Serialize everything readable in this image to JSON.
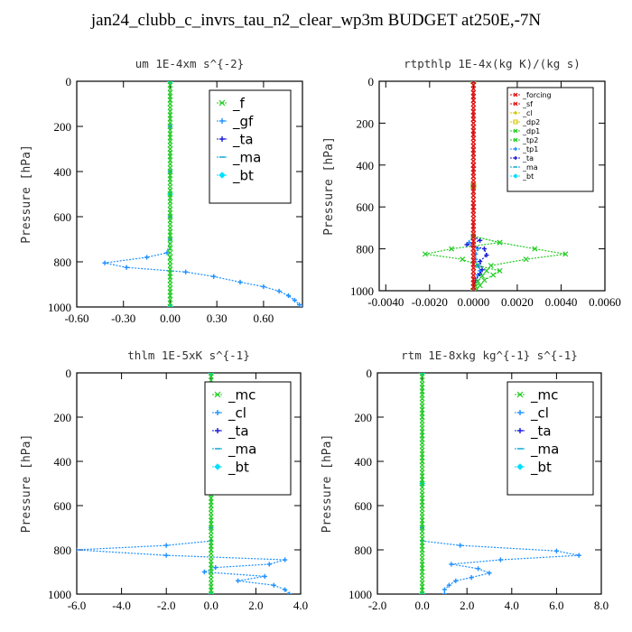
{
  "title": "jan24_clubb_c_invrs_tau_n2_clear_wp3m  BUDGET at250E,-7N",
  "colors": {
    "f": "#22cc22",
    "gf": "#1e90ff",
    "ta": "#1a1adc",
    "ma": "#00a0d0",
    "bt": "#00e0ff",
    "mc": "#22cc22",
    "cl": "#1e90ff",
    "forcing": "#e01010",
    "sf": "#e01010",
    "dp2": "#d4c400",
    "dp1": "#d4c400",
    "tp2": "#22cc22",
    "tp1": "#1e90ff"
  },
  "chart_data": [
    {
      "type": "line",
      "title": "um   1E-4xm  s^{-2}",
      "ylabel": "Pressure  [hPa]",
      "xlim": [
        -0.6,
        0.85
      ],
      "ylim": [
        1000,
        0
      ],
      "xticks": [
        -0.6,
        -0.3,
        0.0,
        0.3,
        0.6
      ],
      "xtick_labels": [
        "-0.60",
        "-0.30",
        "0.00",
        "0.30",
        "0.60"
      ],
      "yticks": [
        0,
        200,
        400,
        600,
        800,
        1000
      ],
      "legend_loc": "upper-right",
      "series": [
        {
          "name": "_f",
          "color": "#22cc22",
          "marker": "x",
          "y": [
            0,
            100,
            200,
            300,
            400,
            500,
            600,
            700,
            760,
            800,
            850,
            900,
            950,
            1000
          ],
          "x": [
            0,
            0,
            0,
            0,
            0,
            0,
            0,
            0,
            0,
            0,
            0,
            0,
            0,
            0
          ]
        },
        {
          "name": "_gf",
          "color": "#1e90ff",
          "marker": "+",
          "y": [
            0,
            200,
            400,
            600,
            700,
            760,
            780,
            805,
            825,
            845,
            865,
            890,
            910,
            930,
            950,
            970,
            990,
            1000
          ],
          "x": [
            0,
            0,
            0,
            0,
            0,
            -0.02,
            -0.15,
            -0.42,
            -0.28,
            0.1,
            0.28,
            0.45,
            0.6,
            0.7,
            0.76,
            0.8,
            0.83,
            0.85
          ]
        },
        {
          "name": "_ta",
          "color": "#1a1adc",
          "marker": "+",
          "y": [
            0,
            500,
            1000
          ],
          "x": [
            0,
            0,
            0
          ]
        },
        {
          "name": "_ma",
          "color": "#00a0d0",
          "marker": "-",
          "y": [
            0,
            500,
            1000
          ],
          "x": [
            0,
            0,
            0
          ]
        },
        {
          "name": "_bt",
          "color": "#00e0ff",
          "marker": "diamond",
          "y": [
            0,
            500,
            1000
          ],
          "x": [
            0,
            0,
            0
          ]
        }
      ]
    },
    {
      "type": "line",
      "title": "rtpthlp   1E-4x(kg K)/(kg s)",
      "ylabel": "Pressure  [hPa]",
      "xlim": [
        -0.0043,
        0.006
      ],
      "ylim": [
        1000,
        0
      ],
      "xticks": [
        -0.004,
        -0.002,
        0.0,
        0.002,
        0.004,
        0.006
      ],
      "xtick_labels": [
        "-0.0040",
        "-0.0020",
        "0.0000",
        "0.0020",
        "0.0040",
        "0.0060"
      ],
      "yticks": [
        0,
        200,
        400,
        600,
        800,
        1000
      ],
      "legend_loc": "upper-right",
      "series": [
        {
          "name": "_forcing",
          "color": "#e01010",
          "marker": "x",
          "y": [
            0,
            200,
            400,
            600,
            800,
            1000
          ],
          "x": [
            0,
            0,
            0,
            0,
            0,
            0
          ]
        },
        {
          "name": "_sf",
          "color": "#e01010",
          "marker": "x",
          "y": [
            0,
            200,
            400,
            600,
            800,
            1000
          ],
          "x": [
            0,
            0,
            0,
            0,
            0,
            0
          ]
        },
        {
          "name": "_cl",
          "color": "#d4c400",
          "marker": "+",
          "y": [
            0,
            500,
            1000
          ],
          "x": [
            0,
            0,
            0
          ]
        },
        {
          "name": "_dp2",
          "color": "#d4c400",
          "marker": "box",
          "y": [
            0,
            500,
            1000
          ],
          "x": [
            0,
            0,
            0
          ]
        },
        {
          "name": "_dp1",
          "color": "#22cc22",
          "marker": "x",
          "y": [
            0,
            500,
            1000
          ],
          "x": [
            0,
            0,
            0
          ]
        },
        {
          "name": "_tp2",
          "color": "#22cc22",
          "marker": "x",
          "y": [
            0,
            740,
            770,
            800,
            825,
            850,
            880,
            905,
            925,
            950,
            975,
            1000
          ],
          "x": [
            0,
            0,
            0.0012,
            -0.001,
            -0.0022,
            -0.0005,
            0.0002,
            0.0012,
            0.0009,
            0.0005,
            0.0003,
            0.0001
          ]
        },
        {
          "name": "_tp1",
          "color": "#1e90ff",
          "marker": "+",
          "y": [
            0,
            740,
            770,
            800,
            825,
            850,
            880,
            905,
            925,
            950,
            1000
          ],
          "x": [
            0,
            0,
            -0.0002,
            0.0002,
            0.0001,
            0.0001,
            0.0002,
            0.0003,
            0.0002,
            0.0001,
            0
          ]
        },
        {
          "name": "_ta",
          "color": "#1a1adc",
          "marker": "+",
          "y": [
            0,
            740,
            760,
            780,
            800,
            830,
            860,
            900,
            920,
            950,
            1000
          ],
          "x": [
            0,
            0,
            0.0003,
            -0.0003,
            0.0005,
            0.0006,
            0.0003,
            0.0004,
            0.0003,
            0.0001,
            0
          ]
        },
        {
          "name": "_ma",
          "color": "#00a0d0",
          "marker": "-",
          "y": [
            0,
            500,
            1000
          ],
          "x": [
            0,
            0,
            0
          ]
        },
        {
          "name": "_bt",
          "color": "#00e0ff",
          "marker": "diamond",
          "y": [
            0,
            500,
            1000
          ],
          "x": [
            0,
            0,
            0
          ]
        }
      ],
      "extra_lines": [
        {
          "name": "tp2-right",
          "color": "#22cc22",
          "y": [
            740,
            770,
            800,
            825,
            850,
            880,
            905,
            930,
            955,
            980
          ],
          "x": [
            0,
            0.0012,
            0.0028,
            0.0042,
            0.0024,
            0.0008,
            0.0006,
            0.0004,
            0.0002,
            0.0001
          ]
        }
      ]
    },
    {
      "type": "line",
      "title": "thlm   1E-5xK  s^{-1}",
      "ylabel": "Pressure  [hPa]",
      "xlim": [
        -6.0,
        4.0
      ],
      "ylim": [
        1000,
        0
      ],
      "xticks": [
        -6,
        -4,
        -2,
        0,
        2,
        4
      ],
      "xtick_labels": [
        "-6.0",
        "-4.0",
        "-2.0",
        "0.0",
        "2.0",
        "4.0"
      ],
      "yticks": [
        0,
        200,
        400,
        600,
        800,
        1000
      ],
      "legend_loc": "upper-right",
      "series": [
        {
          "name": "_mc",
          "color": "#22cc22",
          "marker": "x",
          "y": [
            0,
            100,
            200,
            300,
            400,
            500,
            600,
            700,
            800,
            900,
            1000
          ],
          "x": [
            0,
            0,
            0,
            0,
            0,
            0,
            0,
            0,
            0,
            0,
            0
          ]
        },
        {
          "name": "_cl",
          "color": "#1e90ff",
          "marker": "+",
          "y": [
            0,
            500,
            700,
            760,
            780,
            800,
            825,
            845,
            865,
            880,
            900,
            920,
            940,
            960,
            980,
            1000
          ],
          "x": [
            0,
            0,
            0,
            0,
            -2.0,
            -6.0,
            -2.0,
            3.3,
            2.6,
            0.2,
            -0.3,
            2.4,
            1.2,
            2.8,
            3.3,
            3.5
          ]
        },
        {
          "name": "_ta",
          "color": "#1a1adc",
          "marker": "+",
          "y": [
            0,
            500,
            1000
          ],
          "x": [
            0,
            0,
            0
          ]
        },
        {
          "name": "_ma",
          "color": "#00a0d0",
          "marker": "-",
          "y": [
            0,
            500,
            1000
          ],
          "x": [
            0,
            0,
            0
          ]
        },
        {
          "name": "_bt",
          "color": "#00e0ff",
          "marker": "diamond",
          "y": [
            0,
            500,
            1000
          ],
          "x": [
            0,
            0,
            0
          ]
        }
      ]
    },
    {
      "type": "line",
      "title": "rtm   1E-8xkg  kg^{-1}  s^{-1}",
      "ylabel": "Pressure  [hPa]",
      "xlim": [
        -2.0,
        8.0
      ],
      "ylim": [
        1000,
        0
      ],
      "xticks": [
        -2,
        0,
        2,
        4,
        6,
        8
      ],
      "xtick_labels": [
        "-2.0",
        "0.0",
        "2.0",
        "4.0",
        "6.0",
        "8.0"
      ],
      "yticks": [
        0,
        200,
        400,
        600,
        800,
        1000
      ],
      "legend_loc": "upper-right",
      "series": [
        {
          "name": "_mc",
          "color": "#22cc22",
          "marker": "x",
          "y": [
            0,
            100,
            200,
            300,
            400,
            500,
            600,
            700,
            800,
            900,
            1000
          ],
          "x": [
            0,
            0,
            0,
            0,
            0,
            0,
            0,
            0,
            0,
            0,
            0
          ]
        },
        {
          "name": "_cl",
          "color": "#1e90ff",
          "marker": "+",
          "y": [
            0,
            500,
            700,
            760,
            780,
            805,
            825,
            845,
            865,
            885,
            905,
            925,
            940,
            960,
            980,
            1000
          ],
          "x": [
            0,
            0,
            0,
            0,
            1.7,
            6.0,
            7.0,
            3.5,
            1.3,
            2.5,
            3.0,
            2.2,
            1.5,
            1.2,
            1.0,
            1.0
          ]
        },
        {
          "name": "_ta",
          "color": "#1a1adc",
          "marker": "+",
          "y": [
            0,
            500,
            1000
          ],
          "x": [
            0,
            0,
            0
          ]
        },
        {
          "name": "_ma",
          "color": "#00a0d0",
          "marker": "-",
          "y": [
            0,
            500,
            1000
          ],
          "x": [
            0,
            0,
            0
          ]
        },
        {
          "name": "_bt",
          "color": "#00e0ff",
          "marker": "diamond",
          "y": [
            0,
            500,
            1000
          ],
          "x": [
            0,
            0,
            0
          ]
        }
      ]
    }
  ]
}
